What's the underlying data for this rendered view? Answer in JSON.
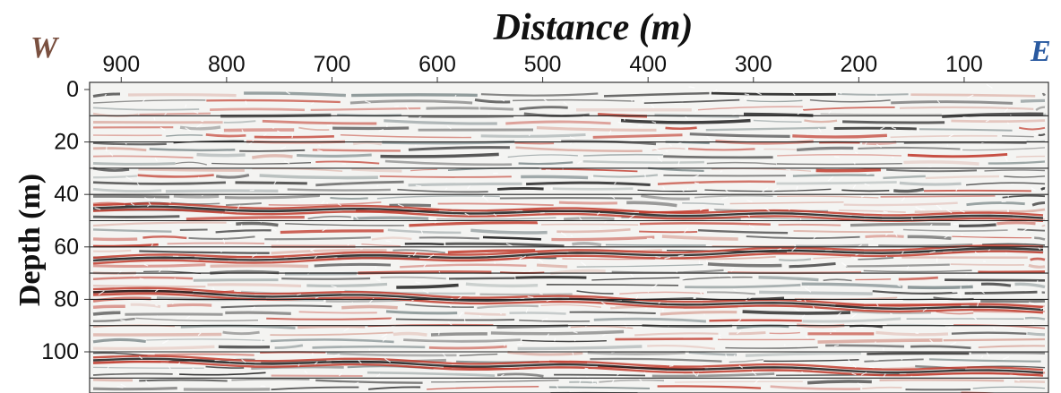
{
  "chart_data": {
    "type": "heatmap",
    "title": "Distance (m)",
    "xlabel": "Distance (m)",
    "ylabel": "Depth (m)",
    "x_ticks": [
      900,
      800,
      700,
      600,
      500,
      400,
      300,
      200,
      100
    ],
    "y_ticks": [
      0,
      20,
      40,
      60,
      80,
      100
    ],
    "xlim": [
      930,
      20
    ],
    "ylim": [
      0,
      118
    ],
    "x_reversed": true,
    "grid": true,
    "horizontal_gridlines_depth": [
      10,
      20,
      30,
      40,
      50,
      60,
      70,
      80,
      90,
      100,
      110
    ],
    "west_label": "W",
    "east_label": "E",
    "strong_reflectors": [
      {
        "depth_west": 45,
        "depth_east": 49
      },
      {
        "depth_west": 65,
        "depth_east": 61
      },
      {
        "depth_west": 77,
        "depth_east": 84
      },
      {
        "depth_west": 103,
        "depth_east": 108
      }
    ],
    "colors": {
      "positive": "#c0392b",
      "negative": "#1a1a1a",
      "mid": "#7f8c8d",
      "west_label": "#7a5040",
      "east_label": "#2a5aa0"
    }
  }
}
